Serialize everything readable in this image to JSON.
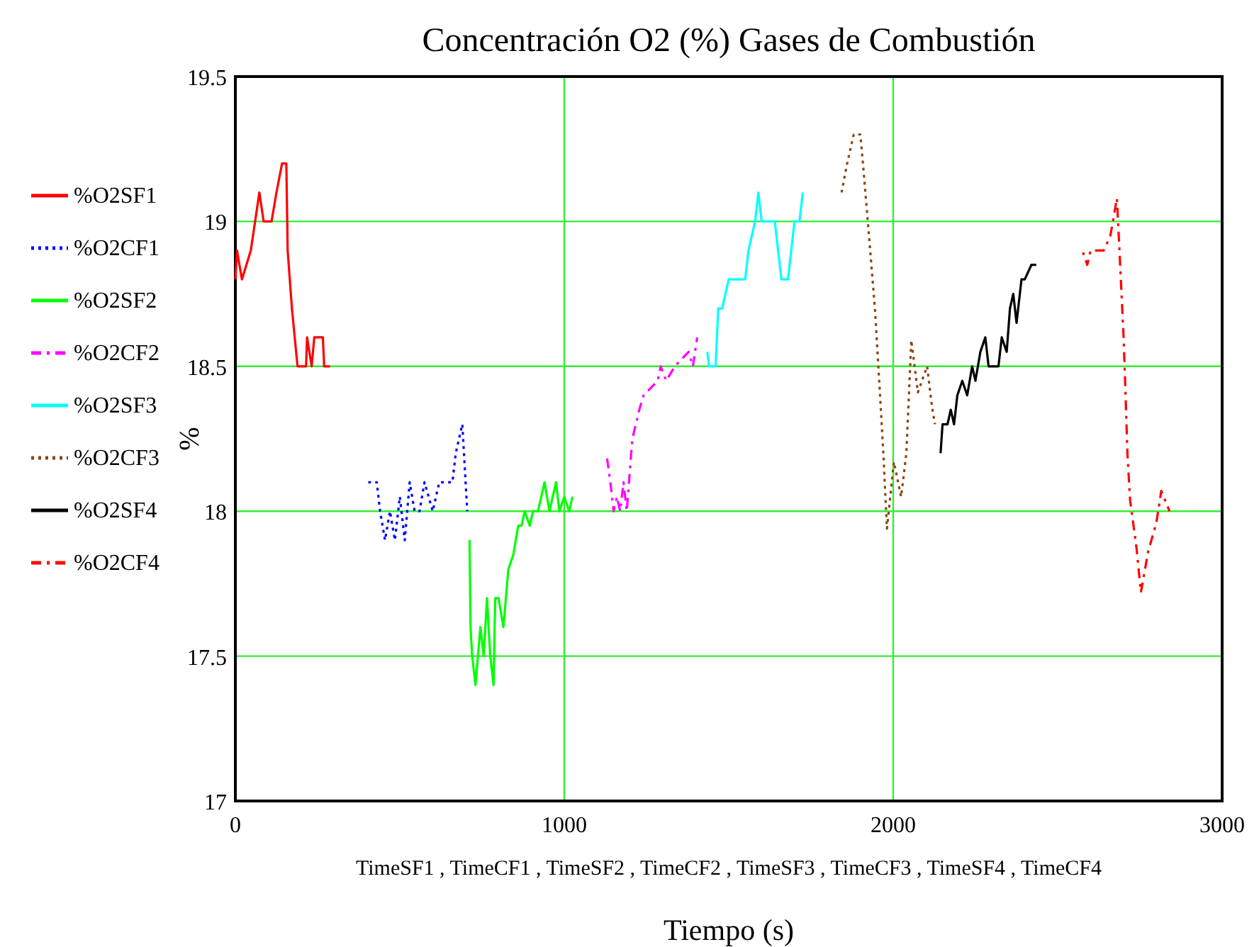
{
  "chart_data": {
    "type": "line",
    "title": "Concentración O2 (%) Gases de Combustión",
    "xlabel": "Tiempo (s)",
    "ylabel": "%",
    "annotations": [
      "TimeSF1 , TimeCF1 , TimeSF2 , TimeCF2 , TimeSF3 , TimeCF3 , TimeSF4 , TimeCF4"
    ],
    "xlim": [
      0,
      3000
    ],
    "xticks": [
      0,
      1000,
      2000,
      3000
    ],
    "ylim": [
      17,
      19.5
    ],
    "yticks": [
      17,
      17.5,
      18,
      18.5,
      19,
      19.5
    ],
    "grid": true,
    "legend": "left",
    "marker": "none",
    "series": [
      {
        "name": "%O2SF1",
        "color": "#ff0000",
        "line_style": "solid",
        "x": [
          0,
          5,
          20,
          47,
          60,
          73,
          86,
          110,
          125,
          142,
          155,
          159,
          172,
          189,
          215,
          218,
          232,
          240,
          266,
          270,
          288
        ],
        "values": [
          18.8,
          18.9,
          18.8,
          18.9,
          19.0,
          19.1,
          19.0,
          19.0,
          19.1,
          19.2,
          19.2,
          18.9,
          18.7,
          18.5,
          18.5,
          18.6,
          18.5,
          18.6,
          18.6,
          18.5,
          18.5
        ]
      },
      {
        "name": "%O2CF1",
        "color": "#0000ff",
        "line_style": "dotted",
        "x": [
          404,
          430,
          440,
          455,
          470,
          485,
          500,
          515,
          530,
          545,
          560,
          575,
          600,
          620,
          640,
          660,
          670,
          680,
          690,
          700,
          705
        ],
        "values": [
          18.1,
          18.1,
          18.0,
          17.9,
          18.0,
          17.9,
          18.05,
          17.9,
          18.1,
          18.0,
          18.0,
          18.1,
          18.0,
          18.1,
          18.1,
          18.1,
          18.2,
          18.25,
          18.3,
          18.1,
          18.0
        ]
      },
      {
        "name": "%O2SF2",
        "color": "#00ff00",
        "line_style": "solid",
        "x": [
          712,
          715,
          720,
          730,
          745,
          755,
          765,
          775,
          785,
          790,
          800,
          815,
          830,
          845,
          860,
          870,
          880,
          895,
          905,
          920,
          940,
          955,
          975,
          985,
          1000,
          1015,
          1025
        ],
        "values": [
          17.9,
          17.6,
          17.5,
          17.4,
          17.6,
          17.5,
          17.7,
          17.5,
          17.4,
          17.7,
          17.7,
          17.6,
          17.8,
          17.85,
          17.95,
          17.95,
          18.0,
          17.95,
          18.0,
          18.0,
          18.1,
          18.0,
          18.1,
          18.0,
          18.05,
          18.0,
          18.05
        ]
      },
      {
        "name": "%O2CF2",
        "color": "#ff00ff",
        "line_style": "dashed",
        "x": [
          1128,
          1140,
          1150,
          1160,
          1170,
          1180,
          1190,
          1200,
          1207,
          1228,
          1241,
          1284,
          1293,
          1310,
          1336,
          1378,
          1391,
          1404
        ],
        "values": [
          18.2,
          18.1,
          18.0,
          18.05,
          18.0,
          18.1,
          18.0,
          18.15,
          18.25,
          18.35,
          18.4,
          18.45,
          18.5,
          18.45,
          18.5,
          18.55,
          18.5,
          18.6
        ]
      },
      {
        "name": "%O2SF3",
        "color": "#00ffff",
        "line_style": "solid",
        "x": [
          1435,
          1440,
          1460,
          1468,
          1480,
          1500,
          1550,
          1560,
          1580,
          1590,
          1600,
          1640,
          1650,
          1660,
          1680,
          1690,
          1700,
          1715,
          1725
        ],
        "values": [
          18.55,
          18.5,
          18.5,
          18.7,
          18.7,
          18.8,
          18.8,
          18.9,
          19.0,
          19.1,
          19.0,
          19.0,
          18.9,
          18.8,
          18.8,
          18.9,
          19.0,
          19.0,
          19.1
        ]
      },
      {
        "name": "%O2CF3",
        "color": "#8b4513",
        "line_style": "dotted",
        "x": [
          1843,
          1860,
          1880,
          1900,
          1908,
          1925,
          1945,
          1960,
          1970,
          1981,
          2002,
          2024,
          2040,
          2055,
          2075,
          2103,
          2118,
          2127
        ],
        "values": [
          19.1,
          19.2,
          19.3,
          19.3,
          19.2,
          18.97,
          18.69,
          18.4,
          18.2,
          17.94,
          18.17,
          18.05,
          18.2,
          18.59,
          18.41,
          18.5,
          18.36,
          18.3
        ]
      },
      {
        "name": "%O2SF4",
        "color": "#000000",
        "line_style": "solid",
        "x": [
          2144,
          2150,
          2165,
          2175,
          2185,
          2195,
          2210,
          2225,
          2240,
          2250,
          2265,
          2280,
          2290,
          2320,
          2330,
          2345,
          2355,
          2365,
          2375,
          2390,
          2400,
          2420,
          2435
        ],
        "values": [
          18.2,
          18.3,
          18.3,
          18.35,
          18.3,
          18.4,
          18.45,
          18.4,
          18.5,
          18.45,
          18.55,
          18.6,
          18.5,
          18.5,
          18.6,
          18.55,
          18.7,
          18.75,
          18.65,
          18.8,
          18.8,
          18.85,
          18.85
        ]
      },
      {
        "name": "%O2CF4",
        "color": "#ff0000",
        "line_style": "dashed",
        "x": [
          2575,
          2590,
          2600,
          2620,
          2640,
          2660,
          2668,
          2680,
          2690,
          2700,
          2705,
          2712,
          2720,
          2740,
          2753,
          2775,
          2800,
          2815,
          2840
        ],
        "values": [
          18.9,
          18.85,
          18.9,
          18.9,
          18.9,
          18.95,
          19.0,
          19.08,
          18.85,
          18.61,
          18.45,
          18.2,
          18.04,
          17.87,
          17.72,
          17.86,
          17.96,
          18.07,
          18.0
        ]
      }
    ]
  }
}
